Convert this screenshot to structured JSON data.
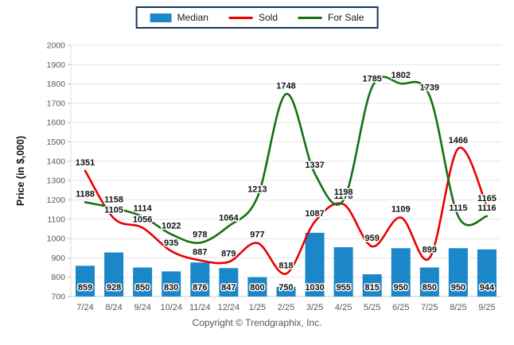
{
  "chart_data": {
    "type": "bar+line",
    "title": "",
    "categories": [
      "7/24",
      "8/24",
      "9/24",
      "10/24",
      "11/24",
      "12/24",
      "1/25",
      "2/25",
      "3/25",
      "4/25",
      "5/25",
      "6/25",
      "7/25",
      "8/25",
      "9/25"
    ],
    "series": [
      {
        "name": "Median",
        "type": "bar",
        "color": "#1b87c9",
        "values": [
          859,
          928,
          850,
          830,
          876,
          847,
          800,
          750,
          1030,
          955,
          815,
          950,
          850,
          950,
          944
        ]
      },
      {
        "name": "Sold",
        "type": "line",
        "color": "#e80000",
        "values": [
          1351,
          1105,
          1056,
          935,
          887,
          879,
          977,
          818,
          1087,
          1178,
          959,
          1109,
          899,
          1466,
          1165
        ]
      },
      {
        "name": "For Sale",
        "type": "line",
        "color": "#157015",
        "values": [
          1188,
          1158,
          1114,
          1022,
          978,
          1064,
          1213,
          1748,
          1337,
          1198,
          1785,
          1802,
          1739,
          1115,
          1116
        ]
      }
    ],
    "xlabel": "",
    "ylabel": "Price (in $,000)",
    "ylim": [
      700,
      2000
    ],
    "ytick_step": 100,
    "grid": true,
    "legend_position": "top-center",
    "legend_border_color": "#17365d"
  },
  "footer": {
    "copyright": "Copyright © Trendgraphix, Inc."
  }
}
